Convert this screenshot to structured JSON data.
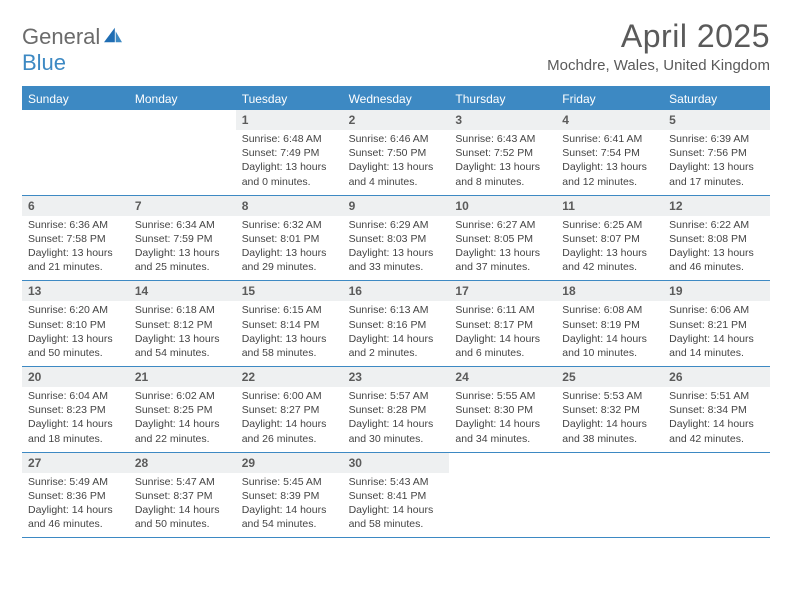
{
  "logo": {
    "word1": "General",
    "word2": "Blue"
  },
  "title": "April 2025",
  "location": "Mochdre, Wales, United Kingdom",
  "colors": {
    "brand_blue": "#3d89c3",
    "header_gray": "#6b6b6b",
    "daynum_bg": "#eef0f1",
    "text": "#444444"
  },
  "dow": [
    "Sunday",
    "Monday",
    "Tuesday",
    "Wednesday",
    "Thursday",
    "Friday",
    "Saturday"
  ],
  "weeks": [
    [
      {
        "n": "",
        "sr": "",
        "ss": "",
        "dl": ""
      },
      {
        "n": "",
        "sr": "",
        "ss": "",
        "dl": ""
      },
      {
        "n": "1",
        "sr": "Sunrise: 6:48 AM",
        "ss": "Sunset: 7:49 PM",
        "dl": "Daylight: 13 hours and 0 minutes."
      },
      {
        "n": "2",
        "sr": "Sunrise: 6:46 AM",
        "ss": "Sunset: 7:50 PM",
        "dl": "Daylight: 13 hours and 4 minutes."
      },
      {
        "n": "3",
        "sr": "Sunrise: 6:43 AM",
        "ss": "Sunset: 7:52 PM",
        "dl": "Daylight: 13 hours and 8 minutes."
      },
      {
        "n": "4",
        "sr": "Sunrise: 6:41 AM",
        "ss": "Sunset: 7:54 PM",
        "dl": "Daylight: 13 hours and 12 minutes."
      },
      {
        "n": "5",
        "sr": "Sunrise: 6:39 AM",
        "ss": "Sunset: 7:56 PM",
        "dl": "Daylight: 13 hours and 17 minutes."
      }
    ],
    [
      {
        "n": "6",
        "sr": "Sunrise: 6:36 AM",
        "ss": "Sunset: 7:58 PM",
        "dl": "Daylight: 13 hours and 21 minutes."
      },
      {
        "n": "7",
        "sr": "Sunrise: 6:34 AM",
        "ss": "Sunset: 7:59 PM",
        "dl": "Daylight: 13 hours and 25 minutes."
      },
      {
        "n": "8",
        "sr": "Sunrise: 6:32 AM",
        "ss": "Sunset: 8:01 PM",
        "dl": "Daylight: 13 hours and 29 minutes."
      },
      {
        "n": "9",
        "sr": "Sunrise: 6:29 AM",
        "ss": "Sunset: 8:03 PM",
        "dl": "Daylight: 13 hours and 33 minutes."
      },
      {
        "n": "10",
        "sr": "Sunrise: 6:27 AM",
        "ss": "Sunset: 8:05 PM",
        "dl": "Daylight: 13 hours and 37 minutes."
      },
      {
        "n": "11",
        "sr": "Sunrise: 6:25 AM",
        "ss": "Sunset: 8:07 PM",
        "dl": "Daylight: 13 hours and 42 minutes."
      },
      {
        "n": "12",
        "sr": "Sunrise: 6:22 AM",
        "ss": "Sunset: 8:08 PM",
        "dl": "Daylight: 13 hours and 46 minutes."
      }
    ],
    [
      {
        "n": "13",
        "sr": "Sunrise: 6:20 AM",
        "ss": "Sunset: 8:10 PM",
        "dl": "Daylight: 13 hours and 50 minutes."
      },
      {
        "n": "14",
        "sr": "Sunrise: 6:18 AM",
        "ss": "Sunset: 8:12 PM",
        "dl": "Daylight: 13 hours and 54 minutes."
      },
      {
        "n": "15",
        "sr": "Sunrise: 6:15 AM",
        "ss": "Sunset: 8:14 PM",
        "dl": "Daylight: 13 hours and 58 minutes."
      },
      {
        "n": "16",
        "sr": "Sunrise: 6:13 AM",
        "ss": "Sunset: 8:16 PM",
        "dl": "Daylight: 14 hours and 2 minutes."
      },
      {
        "n": "17",
        "sr": "Sunrise: 6:11 AM",
        "ss": "Sunset: 8:17 PM",
        "dl": "Daylight: 14 hours and 6 minutes."
      },
      {
        "n": "18",
        "sr": "Sunrise: 6:08 AM",
        "ss": "Sunset: 8:19 PM",
        "dl": "Daylight: 14 hours and 10 minutes."
      },
      {
        "n": "19",
        "sr": "Sunrise: 6:06 AM",
        "ss": "Sunset: 8:21 PM",
        "dl": "Daylight: 14 hours and 14 minutes."
      }
    ],
    [
      {
        "n": "20",
        "sr": "Sunrise: 6:04 AM",
        "ss": "Sunset: 8:23 PM",
        "dl": "Daylight: 14 hours and 18 minutes."
      },
      {
        "n": "21",
        "sr": "Sunrise: 6:02 AM",
        "ss": "Sunset: 8:25 PM",
        "dl": "Daylight: 14 hours and 22 minutes."
      },
      {
        "n": "22",
        "sr": "Sunrise: 6:00 AM",
        "ss": "Sunset: 8:27 PM",
        "dl": "Daylight: 14 hours and 26 minutes."
      },
      {
        "n": "23",
        "sr": "Sunrise: 5:57 AM",
        "ss": "Sunset: 8:28 PM",
        "dl": "Daylight: 14 hours and 30 minutes."
      },
      {
        "n": "24",
        "sr": "Sunrise: 5:55 AM",
        "ss": "Sunset: 8:30 PM",
        "dl": "Daylight: 14 hours and 34 minutes."
      },
      {
        "n": "25",
        "sr": "Sunrise: 5:53 AM",
        "ss": "Sunset: 8:32 PM",
        "dl": "Daylight: 14 hours and 38 minutes."
      },
      {
        "n": "26",
        "sr": "Sunrise: 5:51 AM",
        "ss": "Sunset: 8:34 PM",
        "dl": "Daylight: 14 hours and 42 minutes."
      }
    ],
    [
      {
        "n": "27",
        "sr": "Sunrise: 5:49 AM",
        "ss": "Sunset: 8:36 PM",
        "dl": "Daylight: 14 hours and 46 minutes."
      },
      {
        "n": "28",
        "sr": "Sunrise: 5:47 AM",
        "ss": "Sunset: 8:37 PM",
        "dl": "Daylight: 14 hours and 50 minutes."
      },
      {
        "n": "29",
        "sr": "Sunrise: 5:45 AM",
        "ss": "Sunset: 8:39 PM",
        "dl": "Daylight: 14 hours and 54 minutes."
      },
      {
        "n": "30",
        "sr": "Sunrise: 5:43 AM",
        "ss": "Sunset: 8:41 PM",
        "dl": "Daylight: 14 hours and 58 minutes."
      },
      {
        "n": "",
        "sr": "",
        "ss": "",
        "dl": ""
      },
      {
        "n": "",
        "sr": "",
        "ss": "",
        "dl": ""
      },
      {
        "n": "",
        "sr": "",
        "ss": "",
        "dl": ""
      }
    ]
  ]
}
